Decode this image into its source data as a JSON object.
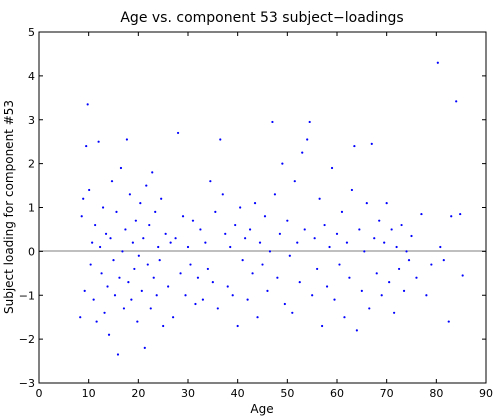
{
  "chart_data": {
    "type": "scatter",
    "title": "Age vs. component 53 subject−loadings",
    "xlabel": "Age",
    "ylabel": "Subject loading for component #53",
    "xlim": [
      0,
      90
    ],
    "ylim": [
      -3,
      5
    ],
    "xticks": [
      "0",
      "10",
      "20",
      "30",
      "40",
      "50",
      "60",
      "70",
      "80",
      "90"
    ],
    "yticks": [
      "5",
      "4",
      "3",
      "2",
      "1",
      "0",
      "−1",
      "−2",
      "−3"
    ],
    "xtick_values": [
      0,
      10,
      20,
      30,
      40,
      50,
      60,
      70,
      80,
      90
    ],
    "ytick_values": [
      5,
      4,
      3,
      2,
      1,
      0,
      -1,
      -2,
      -3
    ],
    "reference_line_y": 0,
    "grid": false,
    "marker_color": "#0000ff",
    "points": [
      [
        8.3,
        -1.5
      ],
      [
        8.6,
        0.8
      ],
      [
        8.9,
        1.2
      ],
      [
        9.2,
        -0.9
      ],
      [
        9.5,
        2.4
      ],
      [
        9.8,
        3.35
      ],
      [
        10.1,
        1.4
      ],
      [
        10.4,
        -0.3
      ],
      [
        10.7,
        0.2
      ],
      [
        11.0,
        -1.1
      ],
      [
        11.3,
        0.6
      ],
      [
        11.6,
        -1.6
      ],
      [
        12.0,
        2.5
      ],
      [
        12.3,
        0.1
      ],
      [
        12.6,
        -0.5
      ],
      [
        12.9,
        1.0
      ],
      [
        13.2,
        -1.4
      ],
      [
        13.5,
        0.4
      ],
      [
        13.8,
        -0.8
      ],
      [
        14.1,
        -1.9
      ],
      [
        14.4,
        0.3
      ],
      [
        14.7,
        1.6
      ],
      [
        15.0,
        -0.2
      ],
      [
        15.3,
        -1.0
      ],
      [
        15.6,
        0.9
      ],
      [
        15.9,
        -2.35
      ],
      [
        16.2,
        -0.6
      ],
      [
        16.5,
        1.9
      ],
      [
        16.8,
        0.0
      ],
      [
        17.1,
        -1.3
      ],
      [
        17.4,
        0.5
      ],
      [
        17.7,
        2.55
      ],
      [
        18.0,
        -0.7
      ],
      [
        18.3,
        1.3
      ],
      [
        18.6,
        -1.1
      ],
      [
        18.9,
        0.2
      ],
      [
        19.2,
        -0.4
      ],
      [
        19.5,
        0.7
      ],
      [
        19.8,
        -1.6
      ],
      [
        20.1,
        -0.1
      ],
      [
        20.4,
        1.1
      ],
      [
        20.7,
        -0.9
      ],
      [
        21.0,
        0.3
      ],
      [
        21.3,
        -2.2
      ],
      [
        21.6,
        1.5
      ],
      [
        21.9,
        -0.3
      ],
      [
        22.2,
        0.6
      ],
      [
        22.5,
        -1.3
      ],
      [
        22.8,
        1.8
      ],
      [
        23.1,
        -0.6
      ],
      [
        23.4,
        0.9
      ],
      [
        23.7,
        -1.0
      ],
      [
        24.0,
        0.1
      ],
      [
        24.3,
        -0.2
      ],
      [
        24.6,
        1.2
      ],
      [
        25.0,
        -1.7
      ],
      [
        25.5,
        0.4
      ],
      [
        26.0,
        -0.8
      ],
      [
        26.5,
        0.2
      ],
      [
        27.0,
        -1.5
      ],
      [
        27.5,
        0.3
      ],
      [
        28.0,
        2.7
      ],
      [
        28.5,
        -0.5
      ],
      [
        29.0,
        0.8
      ],
      [
        29.5,
        -1.0
      ],
      [
        30.0,
        0.1
      ],
      [
        30.5,
        -0.3
      ],
      [
        31.0,
        0.7
      ],
      [
        31.5,
        -1.2
      ],
      [
        32.0,
        -0.6
      ],
      [
        32.5,
        0.5
      ],
      [
        33.0,
        -1.1
      ],
      [
        33.5,
        0.2
      ],
      [
        34.0,
        -0.4
      ],
      [
        34.5,
        1.6
      ],
      [
        35.0,
        -0.7
      ],
      [
        35.5,
        0.9
      ],
      [
        36.0,
        -1.3
      ],
      [
        36.5,
        2.55
      ],
      [
        37.0,
        1.3
      ],
      [
        37.5,
        0.4
      ],
      [
        38.0,
        -0.8
      ],
      [
        38.5,
        0.1
      ],
      [
        39.0,
        -1.0
      ],
      [
        39.5,
        0.6
      ],
      [
        40.0,
        -1.7
      ],
      [
        40.5,
        1.0
      ],
      [
        41.0,
        -0.2
      ],
      [
        41.5,
        0.3
      ],
      [
        42.0,
        -1.1
      ],
      [
        42.5,
        0.5
      ],
      [
        43.0,
        -0.5
      ],
      [
        43.5,
        1.1
      ],
      [
        44.0,
        -1.5
      ],
      [
        44.5,
        0.2
      ],
      [
        45.0,
        -0.3
      ],
      [
        45.5,
        0.8
      ],
      [
        46.0,
        -0.9
      ],
      [
        46.5,
        0.0
      ],
      [
        47.0,
        2.95
      ],
      [
        47.5,
        1.3
      ],
      [
        48.0,
        -0.6
      ],
      [
        48.5,
        0.4
      ],
      [
        49.0,
        2.0
      ],
      [
        49.5,
        -1.2
      ],
      [
        50.0,
        0.7
      ],
      [
        50.5,
        -0.1
      ],
      [
        51.0,
        -1.4
      ],
      [
        51.5,
        1.6
      ],
      [
        52.0,
        0.2
      ],
      [
        52.5,
        -0.7
      ],
      [
        53.0,
        2.25
      ],
      [
        53.5,
        0.5
      ],
      [
        54.0,
        2.55
      ],
      [
        54.5,
        2.95
      ],
      [
        55.0,
        -1.0
      ],
      [
        55.5,
        0.3
      ],
      [
        56.0,
        -0.4
      ],
      [
        56.5,
        1.2
      ],
      [
        57.0,
        -1.7
      ],
      [
        57.5,
        0.6
      ],
      [
        58.0,
        -0.8
      ],
      [
        58.5,
        0.1
      ],
      [
        59.0,
        1.9
      ],
      [
        59.5,
        -1.1
      ],
      [
        60.0,
        0.4
      ],
      [
        60.5,
        -0.3
      ],
      [
        61.0,
        0.9
      ],
      [
        61.5,
        -1.5
      ],
      [
        62.0,
        0.2
      ],
      [
        62.5,
        -0.6
      ],
      [
        63.0,
        1.4
      ],
      [
        63.5,
        2.4
      ],
      [
        64.0,
        -1.8
      ],
      [
        64.5,
        0.5
      ],
      [
        65.0,
        -0.9
      ],
      [
        65.5,
        0.0
      ],
      [
        66.0,
        1.1
      ],
      [
        66.5,
        -1.3
      ],
      [
        67.0,
        2.45
      ],
      [
        67.5,
        0.3
      ],
      [
        68.0,
        -0.5
      ],
      [
        68.5,
        0.7
      ],
      [
        69.0,
        -1.0
      ],
      [
        69.5,
        0.2
      ],
      [
        70.0,
        1.1
      ],
      [
        70.5,
        -0.7
      ],
      [
        71.0,
        0.5
      ],
      [
        71.5,
        -1.4
      ],
      [
        72.0,
        0.1
      ],
      [
        72.5,
        -0.4
      ],
      [
        73.0,
        0.6
      ],
      [
        73.5,
        -0.9
      ],
      [
        74.0,
        0.0
      ],
      [
        74.5,
        -0.2
      ],
      [
        75.0,
        0.35
      ],
      [
        76.0,
        -0.6
      ],
      [
        77.0,
        0.85
      ],
      [
        78.0,
        -1.0
      ],
      [
        79.0,
        -0.3
      ],
      [
        80.3,
        4.3
      ],
      [
        80.8,
        0.1
      ],
      [
        81.5,
        -0.2
      ],
      [
        82.5,
        -1.6
      ],
      [
        83.0,
        0.8
      ],
      [
        84.0,
        3.42
      ],
      [
        84.8,
        0.85
      ],
      [
        85.3,
        -0.55
      ]
    ]
  }
}
